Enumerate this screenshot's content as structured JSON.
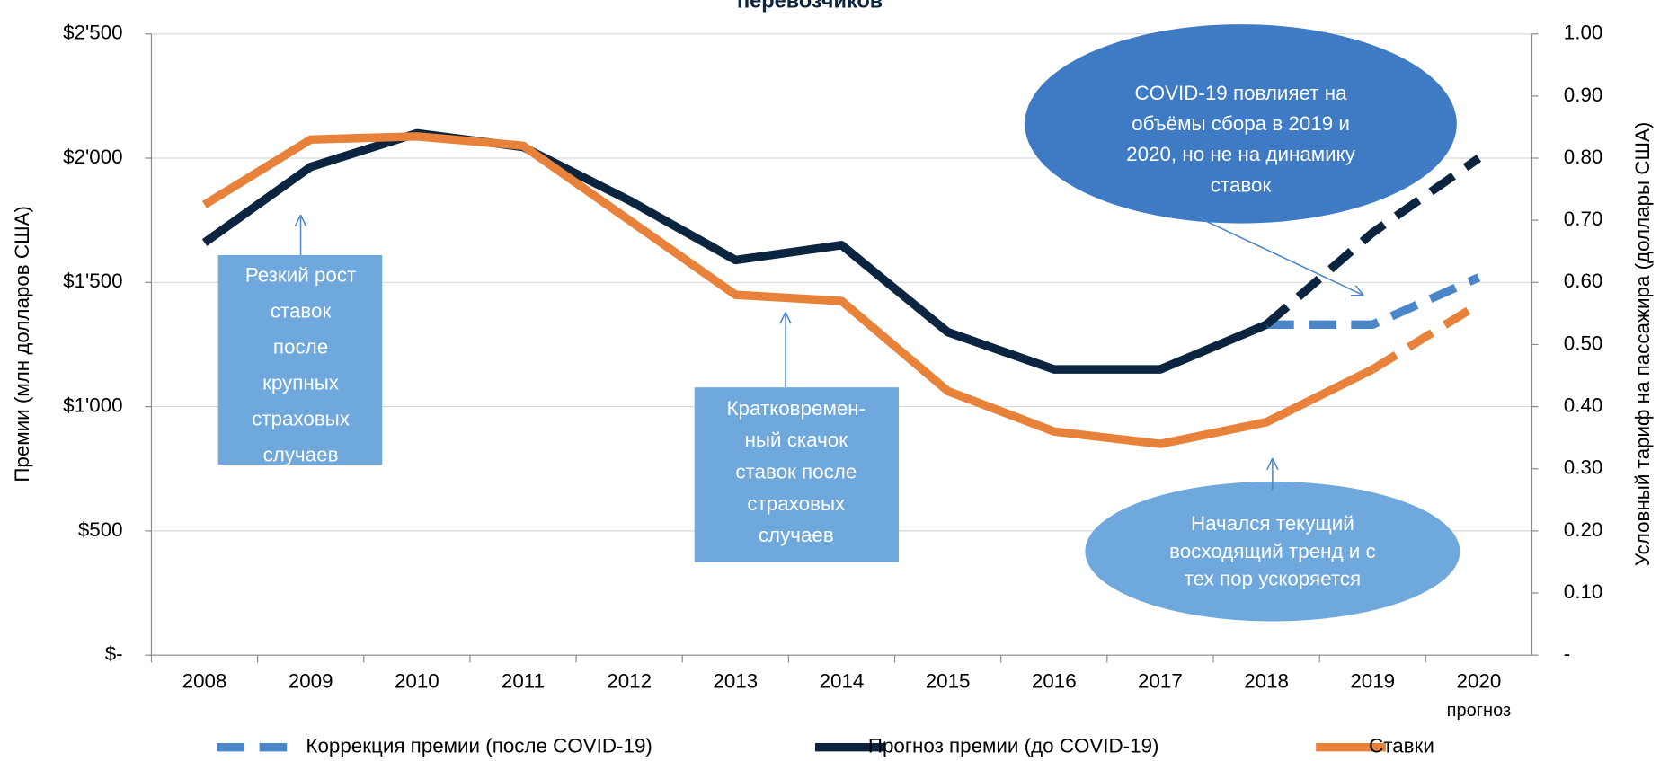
{
  "chart_data": {
    "type": "line",
    "title": "перевозчиков",
    "categories": [
      "2008",
      "2009",
      "2010",
      "2011",
      "2012",
      "2013",
      "2014",
      "2015",
      "2016",
      "2017",
      "2018",
      "2019",
      "2020"
    ],
    "x_note": "прогноз",
    "ylabel": "Премии (млн долларов США)",
    "y2label": "Условный тариф на пассажира  (доллары США)",
    "ylim": [
      0,
      2500
    ],
    "yticks": [
      {
        "value": 0,
        "label": "$-"
      },
      {
        "value": 500,
        "label": "$500"
      },
      {
        "value": 1000,
        "label": "$1'000"
      },
      {
        "value": 1500,
        "label": "$1'500"
      },
      {
        "value": 2000,
        "label": "$2'000"
      },
      {
        "value": 2500,
        "label": "$2'500"
      }
    ],
    "y2lim": [
      0,
      1
    ],
    "y2ticks": [
      {
        "value": 0,
        "label": "-"
      },
      {
        "value": 0.1,
        "label": "0.10"
      },
      {
        "value": 0.2,
        "label": "0.20"
      },
      {
        "value": 0.3,
        "label": "0.30"
      },
      {
        "value": 0.4,
        "label": "0.40"
      },
      {
        "value": 0.5,
        "label": "0.50"
      },
      {
        "value": 0.6,
        "label": "0.60"
      },
      {
        "value": 0.7,
        "label": "0.70"
      },
      {
        "value": 0.8,
        "label": "0.80"
      },
      {
        "value": 0.9,
        "label": "0.90"
      },
      {
        "value": 1,
        "label": "1.00"
      }
    ],
    "grid": true,
    "series": [
      {
        "name": "Коррекция премии (после COVID-19)",
        "color": "#4a86c8",
        "axis": "y",
        "dashed_from": 10,
        "values": [
          null,
          null,
          null,
          null,
          null,
          null,
          null,
          null,
          null,
          null,
          1330,
          1330,
          1520
        ]
      },
      {
        "name": "Прогноз премии (до COVID-19)",
        "color": "#0b2440",
        "axis": "y",
        "dashed_from": 10,
        "values": [
          1660,
          1965,
          2100,
          2045,
          1830,
          1590,
          1650,
          1300,
          1150,
          1150,
          1330,
          1700,
          2000
        ]
      },
      {
        "name": "Ставки",
        "color": "#e8823a",
        "axis": "y2",
        "dashed_from": 11,
        "values": [
          0.725,
          0.83,
          0.835,
          0.82,
          0.7,
          0.58,
          0.57,
          0.425,
          0.36,
          0.34,
          0.375,
          0.46,
          0.565
        ]
      }
    ],
    "annotations": [
      {
        "lines": [
          "Резкий рост",
          "ставок",
          "после",
          "крупных",
          "страховых",
          "случаев"
        ]
      },
      {
        "lines": [
          "Кратковремен-",
          "ный скачок",
          "ставок после",
          "страховых",
          "случаев"
        ]
      },
      {
        "lines": [
          "Начался текущий",
          "восходящий тренд и с",
          "тех пор ускоряется"
        ]
      },
      {
        "lines": [
          "COVID-19 повлияет на",
          "объёмы сбора в 2019 и",
          "2020, но не на динамику",
          "ставок"
        ]
      }
    ]
  }
}
